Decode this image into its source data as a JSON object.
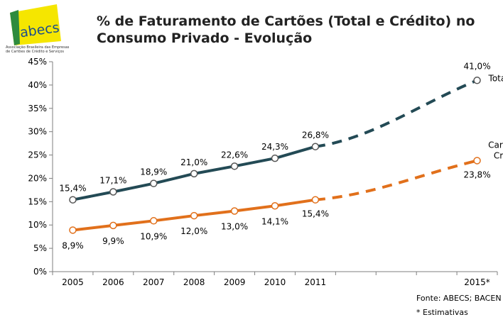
{
  "logo": {
    "name": "abecs",
    "tagline_1": "Associação Brasileira das Empresas",
    "tagline_2": "de Cartões de Crédito e Serviços"
  },
  "title_line1": "% de Faturamento de Cartões (Total e Crédito) no",
  "title_line2": "Consumo Privado - Evolução",
  "source": "Fonte: ABECS; BACEN",
  "note": "* Estimativas",
  "colors": {
    "total": "#234a55",
    "credito": "#e1701b",
    "axis": "#7f7f7f"
  },
  "chart_data": {
    "type": "line",
    "categories": [
      "2005",
      "2006",
      "2007",
      "2008",
      "2009",
      "2010",
      "2011",
      "",
      "",
      "",
      "2015*"
    ],
    "ylim": [
      0,
      45
    ],
    "yticks": [
      "0%",
      "5%",
      "10%",
      "15%",
      "20%",
      "25%",
      "30%",
      "35%",
      "40%",
      "45%"
    ],
    "grid": false,
    "series": [
      {
        "name": "Total",
        "values": [
          15.4,
          17.1,
          18.9,
          21.0,
          22.6,
          24.3,
          26.8,
          null,
          null,
          null,
          41.0
        ],
        "labels": [
          "15,4%",
          "17,1%",
          "18,9%",
          "21,0%",
          "22,6%",
          "24,3%",
          "26,8%",
          "",
          "",
          "",
          "41,0%"
        ],
        "projection_from": "2011",
        "projection_to": "2015*"
      },
      {
        "name": "Cartão de Crédito",
        "name_lines": [
          "Cartão de",
          "Crédito"
        ],
        "values": [
          8.9,
          9.9,
          10.9,
          12.0,
          13.0,
          14.1,
          15.4,
          null,
          null,
          null,
          23.8
        ],
        "labels": [
          "8,9%",
          "9,9%",
          "10,9%",
          "12,0%",
          "13,0%",
          "14,1%",
          "15,4%",
          "",
          "",
          "",
          "23,8%"
        ],
        "projection_from": "2011",
        "projection_to": "2015*"
      }
    ]
  }
}
